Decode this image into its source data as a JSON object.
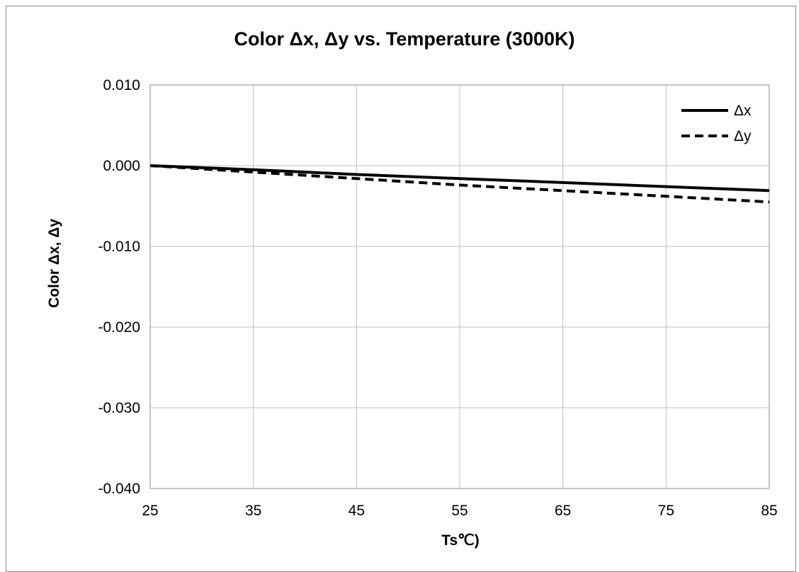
{
  "chart_data": {
    "type": "line",
    "title": "Color Δx, Δy vs. Temperature (3000K)",
    "xlabel": "Ts℃)",
    "ylabel": "Color Δx, Δy",
    "xlim": [
      25,
      85
    ],
    "ylim": [
      -0.04,
      0.01
    ],
    "x_ticks": [
      25,
      35,
      45,
      55,
      65,
      75,
      85
    ],
    "x_tick_labels": [
      "25",
      "35",
      "45",
      "55",
      "65",
      "75",
      "85"
    ],
    "y_ticks": [
      0.01,
      0.0,
      -0.01,
      -0.02,
      -0.03,
      -0.04
    ],
    "y_tick_labels": [
      "0.010",
      "0.000",
      "-0.010",
      "-0.020",
      "-0.030",
      "-0.040"
    ],
    "grid": true,
    "legend_position": "top-right",
    "series": [
      {
        "name": "Δx",
        "style": "solid",
        "color": "#000000",
        "x": [
          25,
          35,
          45,
          55,
          65,
          75,
          85
        ],
        "y": [
          0.0,
          -0.0005,
          -0.0011,
          -0.0016,
          -0.0021,
          -0.0026,
          -0.0031
        ]
      },
      {
        "name": "Δy",
        "style": "dashed",
        "color": "#000000",
        "x": [
          25,
          35,
          45,
          55,
          65,
          75,
          85
        ],
        "y": [
          0.0,
          -0.0008,
          -0.0016,
          -0.0024,
          -0.0031,
          -0.0038,
          -0.0045
        ]
      }
    ]
  }
}
